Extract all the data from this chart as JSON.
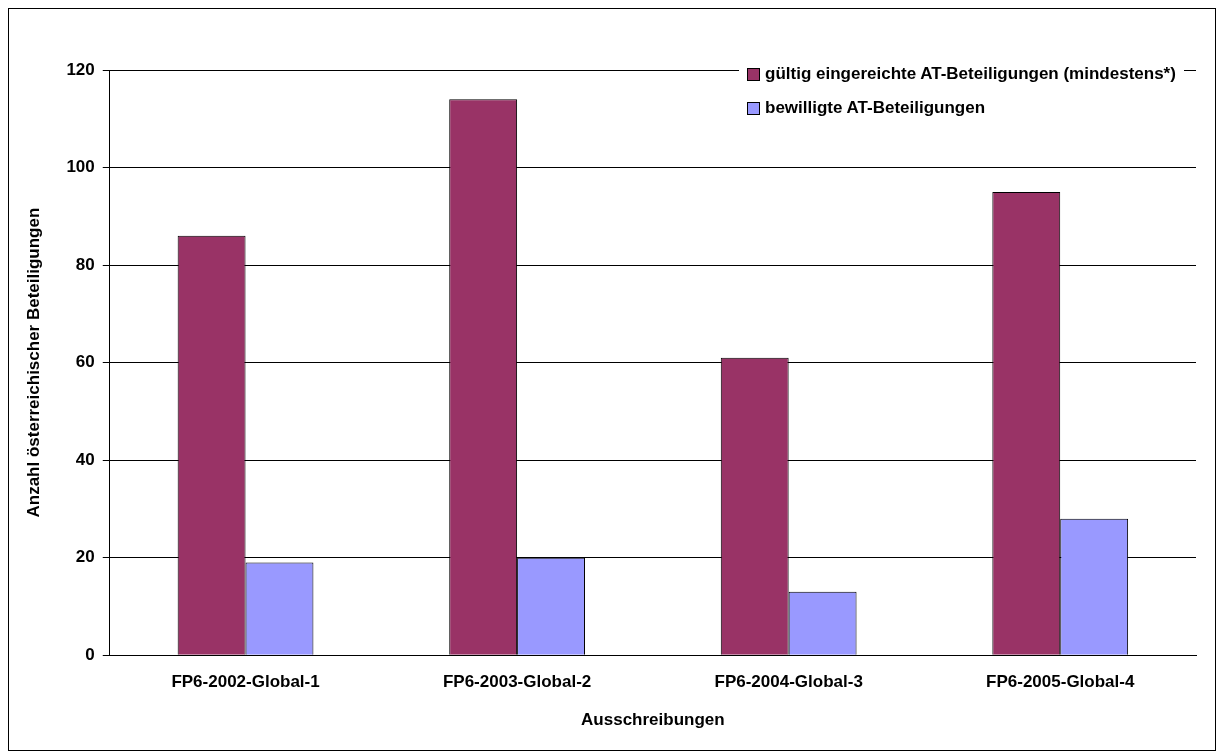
{
  "chart_data": {
    "type": "bar",
    "xlabel": "Ausschreibungen",
    "ylabel": "Anzahl österreichischer Beteiligungen",
    "categories": [
      "FP6-2002-Global-1",
      "FP6-2003-Global-2",
      "FP6-2004-Global-3",
      "FP6-2005-Global-4"
    ],
    "series": [
      {
        "name": "gültig eingereichte AT-Beteiligungen (mindestens*)",
        "color": "#993366",
        "values": [
          86,
          114,
          61,
          95
        ]
      },
      {
        "name": "bewilligte AT-Beteiligungen",
        "color": "#9999ff",
        "values": [
          19,
          20,
          13,
          28
        ]
      }
    ],
    "ylim": [
      0,
      120
    ],
    "yticks": [
      0,
      20,
      40,
      60,
      80,
      100,
      120
    ],
    "grid": "y",
    "legend": "top right"
  }
}
